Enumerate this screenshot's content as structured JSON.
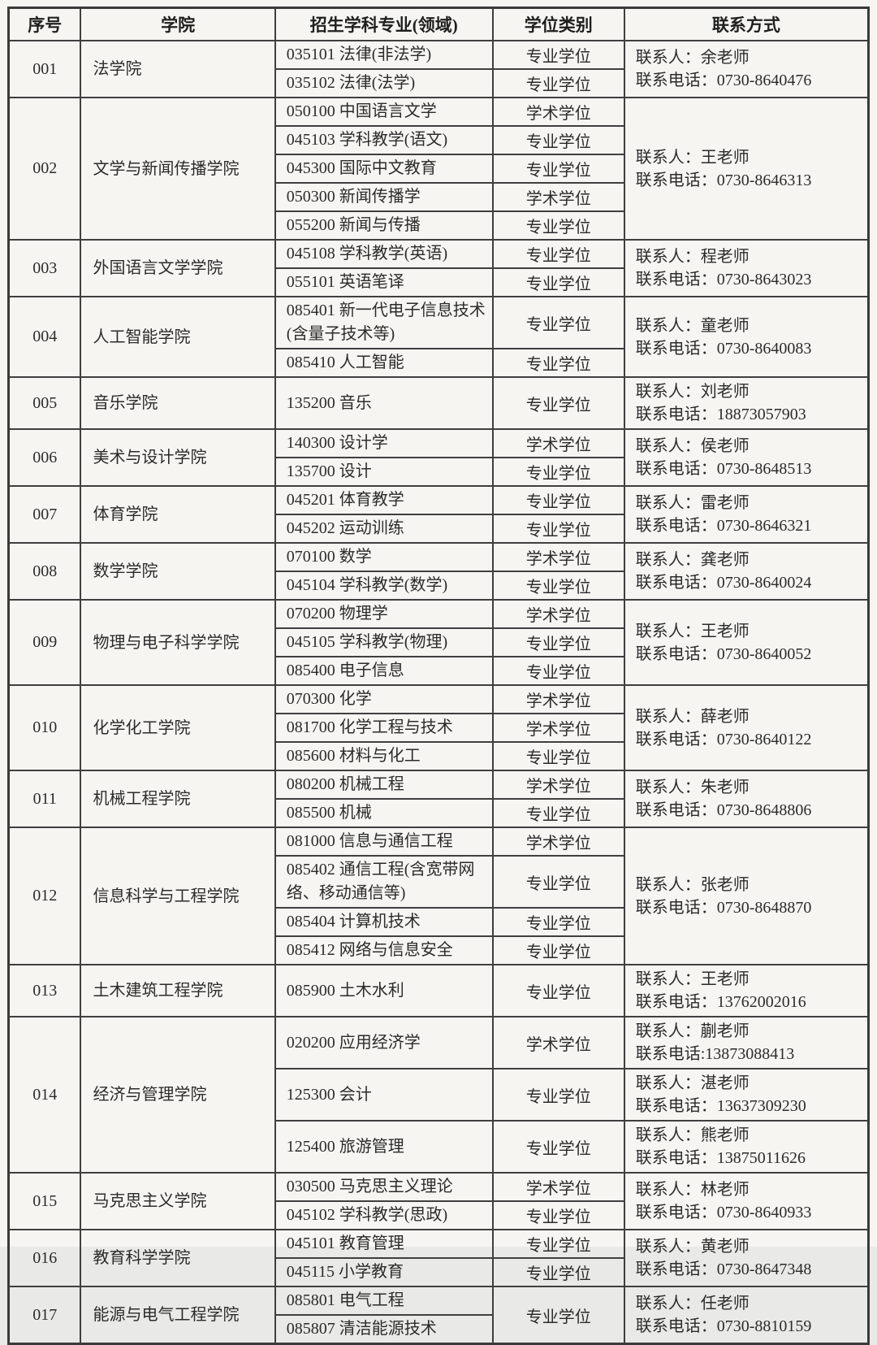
{
  "colors": {
    "page_background": "#f6f5f2",
    "border": "#3f3f3f",
    "text": "#2b2b2b"
  },
  "table": {
    "headers": [
      "序号",
      "学院",
      "招生学科专业(领域)",
      "学位类别",
      "联系方式"
    ],
    "groups": [
      {
        "no": "001",
        "college": "法学院",
        "rows": [
          "035101 法律(非法学)",
          "035102 法律(法学)"
        ],
        "degrees": [
          {
            "text": "专业学位"
          },
          {
            "text": "专业学位"
          }
        ],
        "contacts": [
          {
            "person": "联系人：余老师",
            "phone": "联系电话：0730-8640476",
            "span": 2
          }
        ]
      },
      {
        "no": "002",
        "college": "文学与新闻传播学院",
        "rows": [
          "050100 中国语言文学",
          "045103 学科教学(语文)",
          "045300 国际中文教育",
          "050300 新闻传播学",
          "055200 新闻与传播"
        ],
        "degrees": [
          {
            "text": "学术学位"
          },
          {
            "text": "专业学位"
          },
          {
            "text": "专业学位"
          },
          {
            "text": "学术学位"
          },
          {
            "text": "专业学位"
          }
        ],
        "contacts": [
          {
            "person": "联系人：王老师",
            "phone": "联系电话：0730-8646313",
            "span": 5
          }
        ]
      },
      {
        "no": "003",
        "college": "外国语言文学学院",
        "rows": [
          "045108 学科教学(英语)",
          "055101 英语笔译"
        ],
        "degrees": [
          {
            "text": "专业学位"
          },
          {
            "text": "专业学位"
          }
        ],
        "contacts": [
          {
            "person": "联系人：程老师",
            "phone": "联系电话：0730-8643023",
            "span": 2
          }
        ]
      },
      {
        "no": "004",
        "college": "人工智能学院",
        "rows": [
          "085401 新一代电子信息技术(含量子技术等)",
          "085410 人工智能"
        ],
        "degrees": [
          {
            "text": "专业学位"
          },
          {
            "text": "专业学位"
          }
        ],
        "contacts": [
          {
            "person": "联系人：童老师",
            "phone": "联系电话：0730-8640083",
            "span": 2
          }
        ]
      },
      {
        "no": "005",
        "college": "音乐学院",
        "rows": [
          "135200 音乐"
        ],
        "degrees": [
          {
            "text": "专业学位"
          }
        ],
        "contacts": [
          {
            "person": "联系人：刘老师",
            "phone": "联系电话：18873057903",
            "span": 1
          }
        ]
      },
      {
        "no": "006",
        "college": "美术与设计学院",
        "rows": [
          "140300 设计学",
          "135700 设计"
        ],
        "degrees": [
          {
            "text": "学术学位"
          },
          {
            "text": "专业学位"
          }
        ],
        "contacts": [
          {
            "person": "联系人：侯老师",
            "phone": "联系电话：0730-8648513",
            "span": 2
          }
        ]
      },
      {
        "no": "007",
        "college": "体育学院",
        "rows": [
          "045201 体育教学",
          "045202 运动训练"
        ],
        "degrees": [
          {
            "text": "专业学位"
          },
          {
            "text": "专业学位"
          }
        ],
        "contacts": [
          {
            "person": "联系人：雷老师",
            "phone": "联系电话：0730-8646321",
            "span": 2
          }
        ]
      },
      {
        "no": "008",
        "college": "数学学院",
        "rows": [
          "070100 数学",
          "045104 学科教学(数学)"
        ],
        "degrees": [
          {
            "text": "学术学位"
          },
          {
            "text": "专业学位"
          }
        ],
        "contacts": [
          {
            "person": "联系人：龚老师",
            "phone": "联系电话：0730-8640024",
            "span": 2
          }
        ]
      },
      {
        "no": "009",
        "college": "物理与电子科学学院",
        "rows": [
          "070200 物理学",
          "045105 学科教学(物理)",
          "085400 电子信息"
        ],
        "degrees": [
          {
            "text": "学术学位"
          },
          {
            "text": "专业学位"
          },
          {
            "text": "专业学位"
          }
        ],
        "contacts": [
          {
            "person": "联系人：王老师",
            "phone": "联系电话：0730-8640052",
            "span": 3
          }
        ]
      },
      {
        "no": "010",
        "college": "化学化工学院",
        "rows": [
          "070300 化学",
          "081700 化学工程与技术",
          "085600 材料与化工"
        ],
        "degrees": [
          {
            "text": "学术学位"
          },
          {
            "text": "学术学位"
          },
          {
            "text": "专业学位"
          }
        ],
        "contacts": [
          {
            "person": "联系人：薛老师",
            "phone": "联系电话：0730-8640122",
            "span": 3
          }
        ]
      },
      {
        "no": "011",
        "college": "机械工程学院",
        "rows": [
          "080200 机械工程",
          "085500 机械"
        ],
        "degrees": [
          {
            "text": "学术学位"
          },
          {
            "text": "专业学位"
          }
        ],
        "contacts": [
          {
            "person": "联系人：朱老师",
            "phone": "联系电话：0730-8648806",
            "span": 2
          }
        ]
      },
      {
        "no": "012",
        "college": "信息科学与工程学院",
        "rows": [
          "081000 信息与通信工程",
          "085402 通信工程(含宽带网络、移动通信等)",
          "085404 计算机技术",
          "085412 网络与信息安全"
        ],
        "degrees": [
          {
            "text": "学术学位"
          },
          {
            "text": "专业学位"
          },
          {
            "text": "专业学位"
          },
          {
            "text": "专业学位"
          }
        ],
        "contacts": [
          {
            "person": "联系人：张老师",
            "phone": "联系电话：0730-8648870",
            "span": 4
          }
        ]
      },
      {
        "no": "013",
        "college": "土木建筑工程学院",
        "rows": [
          "085900 土木水利"
        ],
        "degrees": [
          {
            "text": "专业学位"
          }
        ],
        "contacts": [
          {
            "person": "联系人：王老师",
            "phone": "联系电话：13762002016",
            "span": 1
          }
        ]
      },
      {
        "no": "014",
        "college": "经济与管理学院",
        "rows": [
          "020200 应用经济学",
          "125300 会计",
          "125400 旅游管理"
        ],
        "degrees": [
          {
            "text": "学术学位"
          },
          {
            "text": "专业学位"
          },
          {
            "text": "专业学位"
          }
        ],
        "contacts": [
          {
            "person": "联系人：蒯老师",
            "phone": "联系电话:13873088413",
            "span": 1
          },
          {
            "person": "联系人：湛老师",
            "phone": "联系电话：13637309230",
            "span": 1
          },
          {
            "person": "联系人：熊老师",
            "phone": "联系电话：13875011626",
            "span": 1
          }
        ]
      },
      {
        "no": "015",
        "college": "马克思主义学院",
        "rows": [
          "030500 马克思主义理论",
          "045102 学科教学(思政)"
        ],
        "degrees": [
          {
            "text": "学术学位"
          },
          {
            "text": "专业学位"
          }
        ],
        "contacts": [
          {
            "person": "联系人：林老师",
            "phone": "联系电话：0730-8640933",
            "span": 2
          }
        ]
      },
      {
        "no": "016",
        "college": "教育科学学院",
        "rows": [
          "045101 教育管理",
          "045115 小学教育"
        ],
        "degrees": [
          {
            "text": "专业学位"
          },
          {
            "text": "专业学位"
          }
        ],
        "contacts": [
          {
            "person": "联系人：黄老师",
            "phone": "联系电话：0730-8647348",
            "span": 2
          }
        ]
      },
      {
        "no": "017",
        "college": "能源与电气工程学院",
        "rows": [
          "085801 电气工程",
          "085807 清洁能源技术"
        ],
        "degrees": [
          {
            "text": "专业学位",
            "span": 2
          }
        ],
        "contacts": [
          {
            "person": "联系人：任老师",
            "phone": "联系电话：0730-8810159",
            "span": 2
          }
        ]
      }
    ]
  }
}
